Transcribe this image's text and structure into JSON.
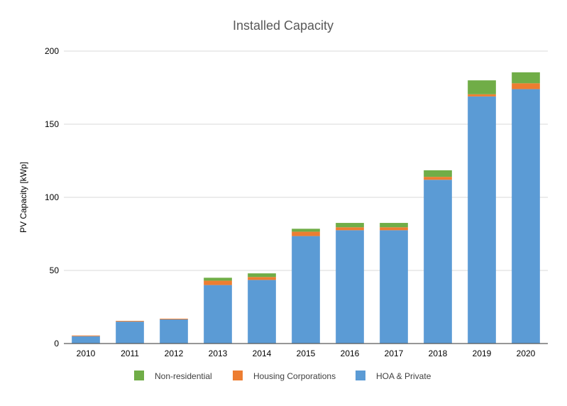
{
  "chart_data": {
    "type": "bar",
    "stacked": true,
    "title": "Installed Capacity",
    "xlabel": "",
    "ylabel": "PV Capacity [kWp]",
    "ylim": [
      0,
      200
    ],
    "yticks": [
      0,
      50,
      100,
      150,
      200
    ],
    "grid": true,
    "legend_position": "bottom",
    "categories": [
      "2010",
      "2011",
      "2012",
      "2013",
      "2014",
      "2015",
      "2016",
      "2017",
      "2018",
      "2019",
      "2020"
    ],
    "series": [
      {
        "name": "HOA & Private",
        "color": "#5b9bd5",
        "values": [
          5,
          15,
          16.5,
          40,
          43.5,
          73.5,
          77.5,
          77.5,
          112,
          169,
          174
        ]
      },
      {
        "name": "Housing Corporations",
        "color": "#ed7d31",
        "values": [
          0.5,
          0.5,
          0.5,
          3,
          2,
          3,
          2,
          2,
          2,
          1.5,
          4
        ]
      },
      {
        "name": "Non-residential",
        "color": "#70ad47",
        "values": [
          0,
          0,
          0,
          2,
          2.5,
          2,
          3,
          3,
          4.5,
          9.5,
          7.5
        ]
      }
    ],
    "legend_order": [
      "Non-residential",
      "Housing Corporations",
      "HOA & Private"
    ]
  }
}
